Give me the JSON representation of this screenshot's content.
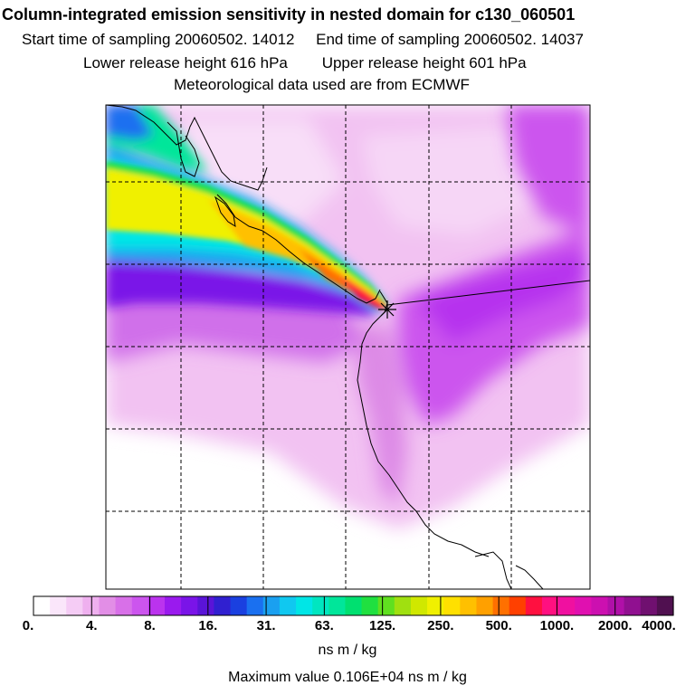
{
  "title": "Column-integrated emission sensitivity in nested domain for c130_060501",
  "info": {
    "start": "Start time of sampling 20060502. 14012",
    "end": "End time of sampling 20060502. 14037",
    "lower": "Lower release height  616 hPa",
    "upper": "Upper release height  601 hPa",
    "met": "Meteorological data used are from ECMWF"
  },
  "colorbar": {
    "ticks": [
      "0.",
      "4.",
      "8.",
      "16.",
      "31.",
      "63.",
      "125.",
      "250.",
      "500.",
      "1000.",
      "2000.",
      "4000."
    ],
    "units": "ns m / kg",
    "colors": [
      "#ffffff",
      "#fae6fa",
      "#f5ccf5",
      "#efb0ef",
      "#e28ee6",
      "#d870e8",
      "#cc55ee",
      "#bb33ee",
      "#9a1aee",
      "#7a14e8",
      "#5a14d8",
      "#3020d0",
      "#1a40e0",
      "#1a70f0",
      "#1aa0f0",
      "#10c8f0",
      "#00e6e6",
      "#00e6c0",
      "#00e69a",
      "#00e070",
      "#20e040",
      "#60e020",
      "#a0e010",
      "#d0e800",
      "#f0f000",
      "#ffe000",
      "#ffc000",
      "#ffa000",
      "#ff7000",
      "#ff4000",
      "#ff1040",
      "#ff1080",
      "#f010a0",
      "#e010b0",
      "#cc10b0",
      "#b010a8",
      "#901090",
      "#701070",
      "#501050"
    ]
  },
  "max_value": "Maximum value  0.106E+04 ns m / kg",
  "marker": "release-point"
}
